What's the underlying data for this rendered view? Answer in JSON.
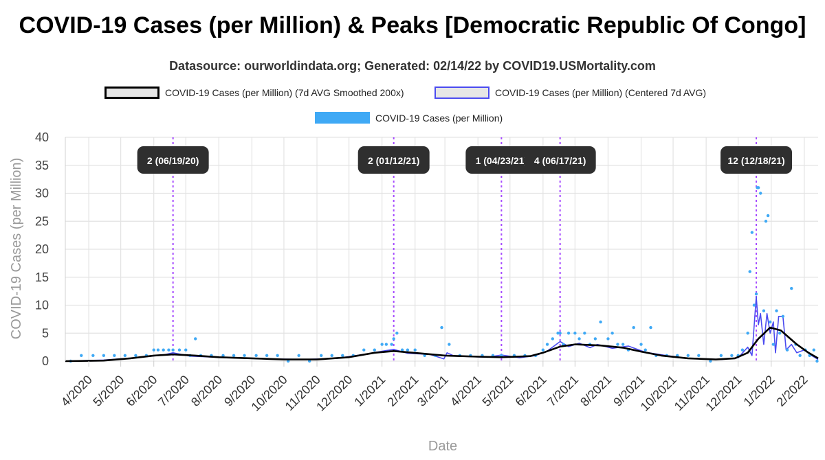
{
  "title": "COVID-19 Cases (per Million) & Peaks [Democratic Republic Of Congo]",
  "subtitle": "Datasource: ourworldindata.org; Generated: 02/14/22 by COVID19.USMortality.com",
  "legend": [
    {
      "label": "COVID-19 Cases (per Million) (7d AVG Smoothed 200x)",
      "color": "#000000"
    },
    {
      "label": "COVID-19 Cases (per Million) (Centered 7d AVG)",
      "color": "#4b4bf0"
    },
    {
      "label": "COVID-19 Cases (per Million)",
      "color": "#3fa9f5"
    }
  ],
  "chart_data": {
    "type": "line",
    "title": "COVID-19 Cases (per Million) & Peaks [Democratic Republic Of Congo]",
    "xlabel": "Date",
    "ylabel": "COVID-19 Cases (per Million)",
    "ylim": [
      0,
      40
    ],
    "yticks": [
      0,
      5,
      10,
      15,
      20,
      25,
      30,
      35,
      40
    ],
    "xlim": [
      "2020-03-10",
      "2022-02-14"
    ],
    "xticks": [
      {
        "date": "2020-04-01",
        "label": "4/2020"
      },
      {
        "date": "2020-05-01",
        "label": "5/2020"
      },
      {
        "date": "2020-06-01",
        "label": "6/2020"
      },
      {
        "date": "2020-07-01",
        "label": "7/2020"
      },
      {
        "date": "2020-08-01",
        "label": "8/2020"
      },
      {
        "date": "2020-09-01",
        "label": "9/2020"
      },
      {
        "date": "2020-10-01",
        "label": "10/2020"
      },
      {
        "date": "2020-11-01",
        "label": "11/2020"
      },
      {
        "date": "2020-12-01",
        "label": "12/2020"
      },
      {
        "date": "2021-01-01",
        "label": "1/2021"
      },
      {
        "date": "2021-02-01",
        "label": "2/2021"
      },
      {
        "date": "2021-03-01",
        "label": "3/2021"
      },
      {
        "date": "2021-04-01",
        "label": "4/2021"
      },
      {
        "date": "2021-05-01",
        "label": "5/2021"
      },
      {
        "date": "2021-06-01",
        "label": "6/2021"
      },
      {
        "date": "2021-07-01",
        "label": "7/2021"
      },
      {
        "date": "2021-08-01",
        "label": "8/2021"
      },
      {
        "date": "2021-09-01",
        "label": "9/2021"
      },
      {
        "date": "2021-10-01",
        "label": "10/2021"
      },
      {
        "date": "2021-11-01",
        "label": "11/2021"
      },
      {
        "date": "2021-12-01",
        "label": "12/2021"
      },
      {
        "date": "2022-01-01",
        "label": "1/2022"
      },
      {
        "date": "2022-02-01",
        "label": "2/2022"
      }
    ],
    "grid": true,
    "legend_position": "top",
    "peaks": [
      {
        "date": "2020-06-19",
        "label": "2 (06/19/20)"
      },
      {
        "date": "2021-01-12",
        "label": "2 (01/12/21)"
      },
      {
        "date": "2021-04-23",
        "label": "1 (04/23/21)"
      },
      {
        "date": "2021-06-17",
        "label": "4 (06/17/21)"
      },
      {
        "date": "2021-12-18",
        "label": "12 (12/18/21)"
      }
    ],
    "series": [
      {
        "name": "COVID-19 Cases (per Million) (7d AVG Smoothed 200x)",
        "color": "#000000",
        "points": [
          [
            "2020-03-10",
            0
          ],
          [
            "2020-04-15",
            0.1
          ],
          [
            "2020-05-10",
            0.5
          ],
          [
            "2020-06-01",
            1.0
          ],
          [
            "2020-06-19",
            1.2
          ],
          [
            "2020-07-10",
            1.0
          ],
          [
            "2020-08-01",
            0.7
          ],
          [
            "2020-09-01",
            0.5
          ],
          [
            "2020-10-01",
            0.3
          ],
          [
            "2020-11-01",
            0.3
          ],
          [
            "2020-12-01",
            0.7
          ],
          [
            "2020-12-25",
            1.5
          ],
          [
            "2021-01-12",
            1.8
          ],
          [
            "2021-02-05",
            1.4
          ],
          [
            "2021-03-01",
            1.0
          ],
          [
            "2021-04-01",
            0.8
          ],
          [
            "2021-04-23",
            0.7
          ],
          [
            "2021-05-20",
            0.9
          ],
          [
            "2021-06-01",
            1.5
          ],
          [
            "2021-06-17",
            2.6
          ],
          [
            "2021-07-01",
            3.0
          ],
          [
            "2021-07-25",
            2.8
          ],
          [
            "2021-08-15",
            2.4
          ],
          [
            "2021-09-01",
            1.7
          ],
          [
            "2021-09-20",
            1.0
          ],
          [
            "2021-10-15",
            0.5
          ],
          [
            "2021-11-10",
            0.3
          ],
          [
            "2021-11-28",
            0.5
          ],
          [
            "2021-12-10",
            1.5
          ],
          [
            "2021-12-20",
            4.0
          ],
          [
            "2021-12-31",
            6.0
          ],
          [
            "2022-01-10",
            5.5
          ],
          [
            "2022-01-25",
            3.0
          ],
          [
            "2022-02-05",
            1.5
          ],
          [
            "2022-02-14",
            0.5
          ]
        ]
      },
      {
        "name": "COVID-19 Cases (per Million) (Centered 7d AVG)",
        "color": "#4b4bf0",
        "points": [
          [
            "2020-03-10",
            0
          ],
          [
            "2020-04-15",
            0.2
          ],
          [
            "2020-05-15",
            0.6
          ],
          [
            "2020-06-10",
            1.1
          ],
          [
            "2020-06-19",
            1.5
          ],
          [
            "2020-07-05",
            0.9
          ],
          [
            "2020-08-10",
            0.6
          ],
          [
            "2020-09-15",
            0.4
          ],
          [
            "2020-10-20",
            0.3
          ],
          [
            "2020-11-20",
            0.5
          ],
          [
            "2020-12-15",
            1.2
          ],
          [
            "2021-01-05",
            1.9
          ],
          [
            "2021-01-12",
            2.1
          ],
          [
            "2021-01-25",
            1.4
          ],
          [
            "2021-02-15",
            1.2
          ],
          [
            "2021-02-28",
            0.4
          ],
          [
            "2021-03-03",
            1.5
          ],
          [
            "2021-03-10",
            0.9
          ],
          [
            "2021-04-10",
            0.7
          ],
          [
            "2021-04-23",
            1.1
          ],
          [
            "2021-05-10",
            0.6
          ],
          [
            "2021-05-25",
            1.0
          ],
          [
            "2021-06-05",
            1.8
          ],
          [
            "2021-06-17",
            3.5
          ],
          [
            "2021-06-25",
            2.6
          ],
          [
            "2021-07-05",
            3.2
          ],
          [
            "2021-07-15",
            2.4
          ],
          [
            "2021-07-22",
            3.0
          ],
          [
            "2021-08-05",
            2.3
          ],
          [
            "2021-08-20",
            2.7
          ],
          [
            "2021-09-05",
            1.6
          ],
          [
            "2021-09-25",
            1.0
          ],
          [
            "2021-10-15",
            0.5
          ],
          [
            "2021-11-15",
            0.3
          ],
          [
            "2021-12-01",
            0.6
          ],
          [
            "2021-12-10",
            2.5
          ],
          [
            "2021-12-14",
            1.0
          ],
          [
            "2021-12-18",
            11.5
          ],
          [
            "2021-12-20",
            6.5
          ],
          [
            "2021-12-22",
            8.5
          ],
          [
            "2021-12-25",
            3.0
          ],
          [
            "2021-12-28",
            8.5
          ],
          [
            "2021-12-31",
            5.0
          ],
          [
            "2022-01-03",
            7.0
          ],
          [
            "2022-01-05",
            1.5
          ],
          [
            "2022-01-08",
            8.0
          ],
          [
            "2022-01-12",
            8.0
          ],
          [
            "2022-01-15",
            2.0
          ],
          [
            "2022-01-20",
            3.0
          ],
          [
            "2022-01-25",
            1.5
          ],
          [
            "2022-02-01",
            2.0
          ],
          [
            "2022-02-08",
            1.0
          ],
          [
            "2022-02-14",
            0.3
          ]
        ]
      },
      {
        "name": "COVID-19 Cases (per Million)",
        "color": "#3fa9f5",
        "type": "scatter",
        "points": [
          [
            "2020-03-15",
            0
          ],
          [
            "2020-03-25",
            1
          ],
          [
            "2020-04-05",
            1
          ],
          [
            "2020-04-15",
            1
          ],
          [
            "2020-04-25",
            1
          ],
          [
            "2020-05-05",
            1
          ],
          [
            "2020-05-15",
            1
          ],
          [
            "2020-05-25",
            1
          ],
          [
            "2020-06-01",
            2
          ],
          [
            "2020-06-05",
            2
          ],
          [
            "2020-06-10",
            2
          ],
          [
            "2020-06-15",
            2
          ],
          [
            "2020-06-19",
            2
          ],
          [
            "2020-06-25",
            2
          ],
          [
            "2020-07-01",
            2
          ],
          [
            "2020-07-05",
            1
          ],
          [
            "2020-07-10",
            4
          ],
          [
            "2020-07-15",
            1
          ],
          [
            "2020-07-25",
            1
          ],
          [
            "2020-08-05",
            1
          ],
          [
            "2020-08-15",
            1
          ],
          [
            "2020-08-25",
            1
          ],
          [
            "2020-09-05",
            1
          ],
          [
            "2020-09-15",
            1
          ],
          [
            "2020-09-25",
            1
          ],
          [
            "2020-10-05",
            0
          ],
          [
            "2020-10-15",
            1
          ],
          [
            "2020-10-25",
            0
          ],
          [
            "2020-11-05",
            1
          ],
          [
            "2020-11-15",
            1
          ],
          [
            "2020-11-25",
            1
          ],
          [
            "2020-12-05",
            1
          ],
          [
            "2020-12-15",
            2
          ],
          [
            "2020-12-25",
            2
          ],
          [
            "2021-01-01",
            3
          ],
          [
            "2021-01-05",
            3
          ],
          [
            "2021-01-10",
            3
          ],
          [
            "2021-01-12",
            4
          ],
          [
            "2021-01-15",
            5
          ],
          [
            "2021-01-20",
            2
          ],
          [
            "2021-01-25",
            2
          ],
          [
            "2021-02-01",
            2
          ],
          [
            "2021-02-10",
            1
          ],
          [
            "2021-02-20",
            1
          ],
          [
            "2021-02-26",
            6
          ],
          [
            "2021-03-05",
            3
          ],
          [
            "2021-03-15",
            1
          ],
          [
            "2021-03-25",
            1
          ],
          [
            "2021-04-05",
            1
          ],
          [
            "2021-04-15",
            1
          ],
          [
            "2021-04-23",
            1
          ],
          [
            "2021-05-05",
            1
          ],
          [
            "2021-05-15",
            1
          ],
          [
            "2021-05-25",
            1
          ],
          [
            "2021-06-01",
            2
          ],
          [
            "2021-06-05",
            3
          ],
          [
            "2021-06-10",
            4
          ],
          [
            "2021-06-15",
            5
          ],
          [
            "2021-06-17",
            5
          ],
          [
            "2021-06-20",
            3
          ],
          [
            "2021-06-25",
            5
          ],
          [
            "2021-07-01",
            5
          ],
          [
            "2021-07-05",
            4
          ],
          [
            "2021-07-10",
            5
          ],
          [
            "2021-07-15",
            3
          ],
          [
            "2021-07-20",
            4
          ],
          [
            "2021-07-25",
            7
          ],
          [
            "2021-08-01",
            4
          ],
          [
            "2021-08-05",
            5
          ],
          [
            "2021-08-10",
            3
          ],
          [
            "2021-08-15",
            3
          ],
          [
            "2021-08-20",
            2
          ],
          [
            "2021-08-25",
            6
          ],
          [
            "2021-09-01",
            3
          ],
          [
            "2021-09-05",
            2
          ],
          [
            "2021-09-10",
            6
          ],
          [
            "2021-09-15",
            1
          ],
          [
            "2021-09-25",
            1
          ],
          [
            "2021-10-05",
            1
          ],
          [
            "2021-10-15",
            1
          ],
          [
            "2021-10-25",
            1
          ],
          [
            "2021-11-05",
            0
          ],
          [
            "2021-11-15",
            1
          ],
          [
            "2021-11-25",
            1
          ],
          [
            "2021-12-01",
            1
          ],
          [
            "2021-12-05",
            2
          ],
          [
            "2021-12-10",
            5
          ],
          [
            "2021-12-12",
            16
          ],
          [
            "2021-12-14",
            23
          ],
          [
            "2021-12-16",
            10
          ],
          [
            "2021-12-18",
            12
          ],
          [
            "2021-12-19",
            31
          ],
          [
            "2021-12-20",
            31
          ],
          [
            "2021-12-22",
            30
          ],
          [
            "2021-12-25",
            9
          ],
          [
            "2021-12-27",
            25
          ],
          [
            "2021-12-29",
            26
          ],
          [
            "2021-12-31",
            7
          ],
          [
            "2022-01-03",
            3
          ],
          [
            "2022-01-06",
            9
          ],
          [
            "2022-01-09",
            5
          ],
          [
            "2022-01-12",
            8
          ],
          [
            "2022-01-16",
            2
          ],
          [
            "2022-01-20",
            13
          ],
          [
            "2022-01-24",
            3
          ],
          [
            "2022-01-28",
            1
          ],
          [
            "2022-02-02",
            2
          ],
          [
            "2022-02-06",
            1
          ],
          [
            "2022-02-10",
            2
          ],
          [
            "2022-02-13",
            0
          ]
        ]
      }
    ]
  }
}
